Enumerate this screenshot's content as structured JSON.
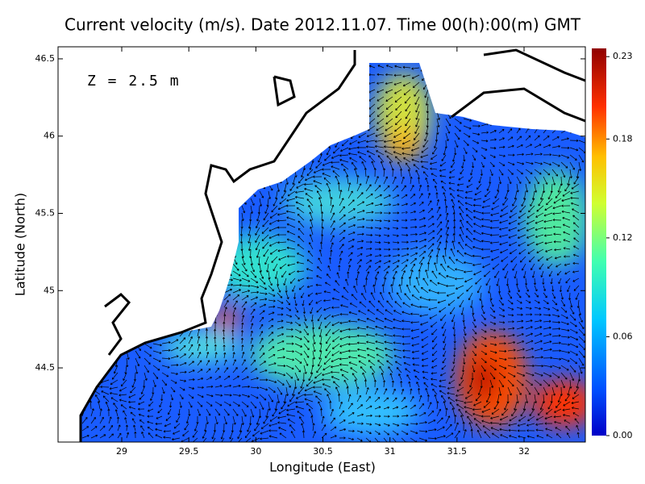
{
  "chart_data": {
    "type": "vector-field",
    "title": "Current velocity (m/s). Date 2012.11.07. Time 00(h):00(m) GMT",
    "annotation": "Z = 2.5 m",
    "x_label": "Longitude (East)",
    "y_label": "Latitude (North)",
    "xlim": [
      28.525,
      32.457
    ],
    "ylim": [
      44.02,
      46.578
    ],
    "xticks": [
      29,
      29.5,
      30,
      30.5,
      31,
      31.5,
      32
    ],
    "yticks": [
      44.5,
      45,
      45.5,
      46,
      46.5
    ],
    "colorbar": {
      "lim": [
        0,
        0.235
      ],
      "ticks": [
        {
          "value": 0,
          "label": "0.00"
        },
        0.06,
        0.12,
        0.18,
        0.23
      ]
    }
  }
}
